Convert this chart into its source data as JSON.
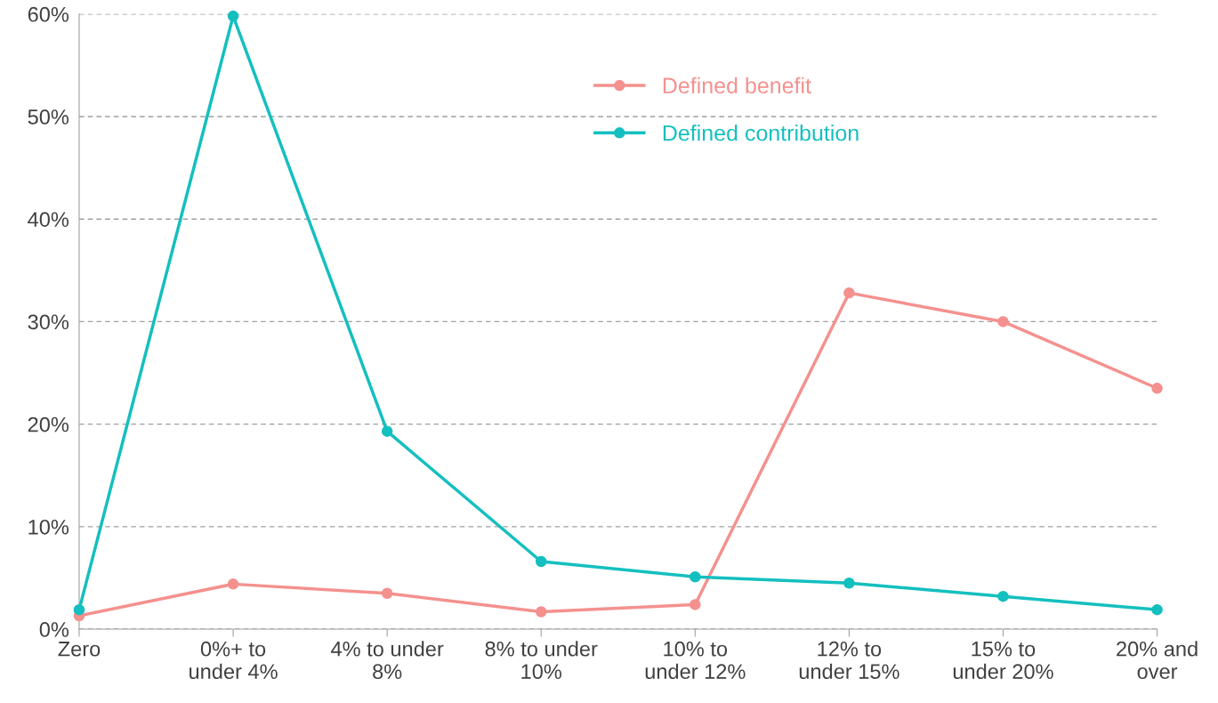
{
  "chart_data": {
    "type": "line",
    "categories": [
      "Zero",
      "0%+ to\nunder 4%",
      "4% to under\n8%",
      "8% to under\n10%",
      "10% to\nunder 12%",
      "12% to\nunder 15%",
      "15% to\nunder 20%",
      "20% and\nover"
    ],
    "series": [
      {
        "name": "Defined benefit",
        "color": "#f4918e",
        "values": [
          1.3,
          4.4,
          3.5,
          1.7,
          2.4,
          32.8,
          30.0,
          23.5
        ]
      },
      {
        "name": "Defined contribution",
        "color": "#14bfbf",
        "values": [
          1.9,
          59.8,
          19.3,
          6.6,
          5.1,
          4.5,
          3.2,
          1.9
        ]
      }
    ],
    "ylim": [
      0,
      60
    ],
    "yticks": [
      {
        "value": 0,
        "label": "0%"
      },
      {
        "value": 10,
        "label": "10%"
      },
      {
        "value": 20,
        "label": "20%"
      },
      {
        "value": 30,
        "label": "30%"
      },
      {
        "value": 40,
        "label": "40%"
      },
      {
        "value": 50,
        "label": "50%"
      },
      {
        "value": 60,
        "label": "60%"
      }
    ],
    "grid": "y",
    "legend": "top",
    "marker": "circle",
    "line_style": "solid"
  }
}
